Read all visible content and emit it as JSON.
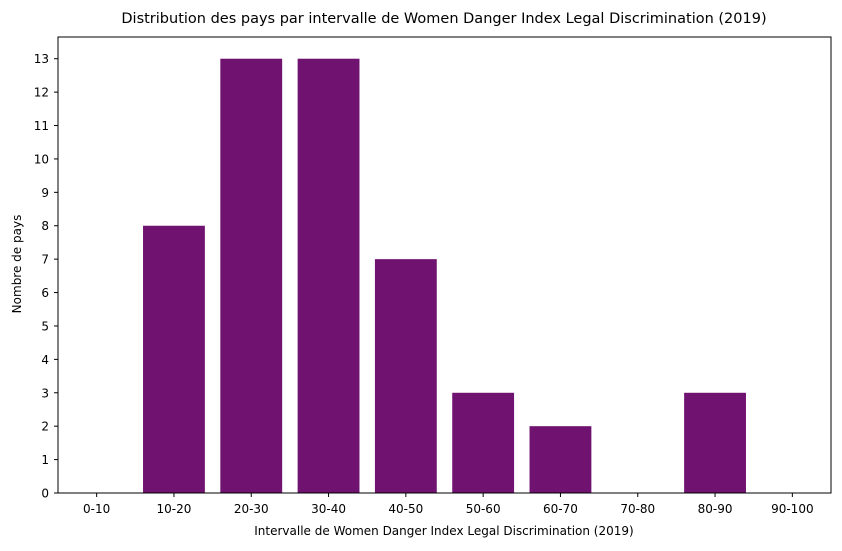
{
  "chart_data": {
    "type": "bar",
    "title": "Distribution des pays par intervalle de Women Danger Index  Legal Discrimination (2019)",
    "xlabel": "Intervalle de Women Danger Index Legal Discrimination (2019)",
    "ylabel": "Nombre de pays",
    "categories": [
      "0-10",
      "10-20",
      "20-30",
      "30-40",
      "40-50",
      "50-60",
      "60-70",
      "70-80",
      "80-90",
      "90-100"
    ],
    "values": [
      0,
      8,
      13,
      13,
      7,
      3,
      2,
      0,
      3,
      0
    ],
    "ylim": [
      0,
      13.65
    ],
    "yticks": [
      0,
      1,
      2,
      3,
      4,
      5,
      6,
      7,
      8,
      9,
      10,
      11,
      12,
      13
    ],
    "bar_color": "#701270",
    "grid": false,
    "legend": "none"
  }
}
